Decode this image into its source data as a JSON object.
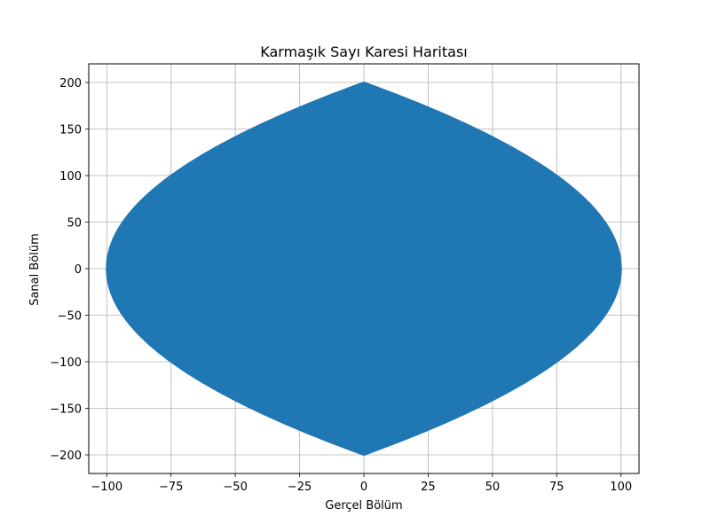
{
  "chart_data": {
    "type": "area",
    "title": "Karmaşık Sayı Karesi Haritası",
    "xlabel": "Gerçel Bölüm",
    "ylabel": "Sanal Bölüm",
    "xlim": [
      -107,
      107
    ],
    "ylim": [
      -220,
      220
    ],
    "x_ticks": [
      -100,
      -75,
      -50,
      -25,
      0,
      25,
      50,
      75,
      100
    ],
    "x_tick_labels": [
      "−100",
      "−75",
      "−50",
      "−25",
      "0",
      "25",
      "50",
      "75",
      "100"
    ],
    "y_ticks": [
      -200,
      -150,
      -100,
      -50,
      0,
      50,
      100,
      150,
      200
    ],
    "y_tick_labels": [
      "−200",
      "−150",
      "−100",
      "−50",
      "0",
      "50",
      "100",
      "150",
      "200"
    ],
    "grid": true,
    "fill_color": "#1f77b4",
    "region": {
      "description_boundary": "x = ±(100 - y^2/400)",
      "x_extent": [
        -100,
        100
      ],
      "y_extent": [
        -200,
        200
      ]
    }
  }
}
